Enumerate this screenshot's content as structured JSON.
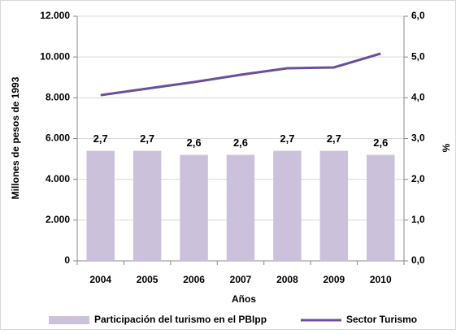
{
  "chart_data": {
    "type": "combo",
    "categories": [
      "2004",
      "2005",
      "2006",
      "2007",
      "2008",
      "2009",
      "2010"
    ],
    "x_label": "Años",
    "y_label": "Millones de pesos de 1993",
    "y2_label": "%",
    "series": [
      {
        "name": "Participación del turismo en el PBIpp",
        "type": "bar",
        "axis": "y2",
        "color": "#ccc1da",
        "values": [
          2.7,
          2.7,
          2.6,
          2.6,
          2.7,
          2.7,
          2.6
        ],
        "value_labels": [
          "2,7",
          "2,7",
          "2,6",
          "2,6",
          "2,7",
          "2,7",
          "2,6"
        ]
      },
      {
        "name": "Sector Turismo",
        "type": "line",
        "color": "#6b4e97",
        "values": [
          8130,
          8450,
          8770,
          9130,
          9450,
          9490,
          10170
        ]
      }
    ],
    "ylim": [
      0,
      12000
    ],
    "yticks": [
      {
        "value": 0,
        "label": "0"
      },
      {
        "value": 2000,
        "label": "2.000"
      },
      {
        "value": 4000,
        "label": "4.000"
      },
      {
        "value": 6000,
        "label": "6.000"
      },
      {
        "value": 8000,
        "label": "8.000"
      },
      {
        "value": 10000,
        "label": "10.000"
      },
      {
        "value": 12000,
        "label": "12.000"
      }
    ],
    "y2lim": [
      0,
      6
    ],
    "y2ticks": [
      {
        "value": 0,
        "label": "0,0"
      },
      {
        "value": 1,
        "label": "1,0"
      },
      {
        "value": 2,
        "label": "2,0"
      },
      {
        "value": 3,
        "label": "3,0"
      },
      {
        "value": 4,
        "label": "4,0"
      },
      {
        "value": 5,
        "label": "5,0"
      },
      {
        "value": 6,
        "label": "6,0"
      }
    ],
    "grid": true,
    "legend": "bottom"
  }
}
